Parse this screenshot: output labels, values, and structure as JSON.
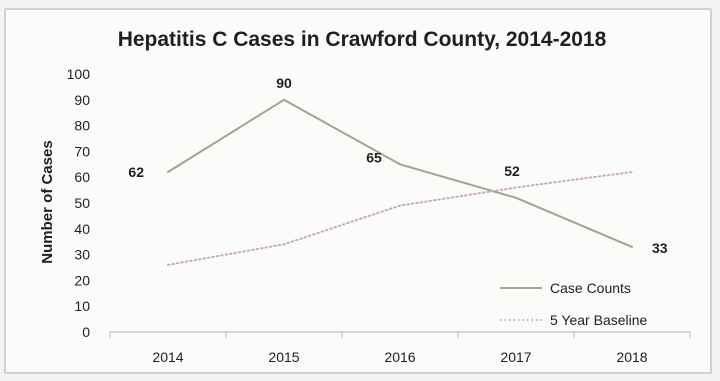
{
  "chart_data": {
    "type": "line",
    "title": "Hepatitis C Cases in Crawford County, 2014-2018",
    "xlabel": "",
    "ylabel": "Number of Cases",
    "categories": [
      "2014",
      "2015",
      "2016",
      "2017",
      "2018"
    ],
    "ylim": [
      0,
      100
    ],
    "yticks": [
      0,
      10,
      20,
      30,
      40,
      50,
      60,
      70,
      80,
      90,
      100
    ],
    "grid": false,
    "legend_placement": "bottom-right",
    "series": [
      {
        "name": "Case Counts",
        "values": [
          62,
          90,
          65,
          52,
          33
        ],
        "data_labels": [
          "62",
          "90",
          "65",
          "52",
          "33"
        ],
        "style": "solid",
        "color": "#9aa890"
      },
      {
        "name": "5 Year Baseline",
        "values": [
          26,
          34,
          49,
          56,
          62
        ],
        "style": "dotted",
        "color": "#c9a7c4"
      }
    ]
  }
}
